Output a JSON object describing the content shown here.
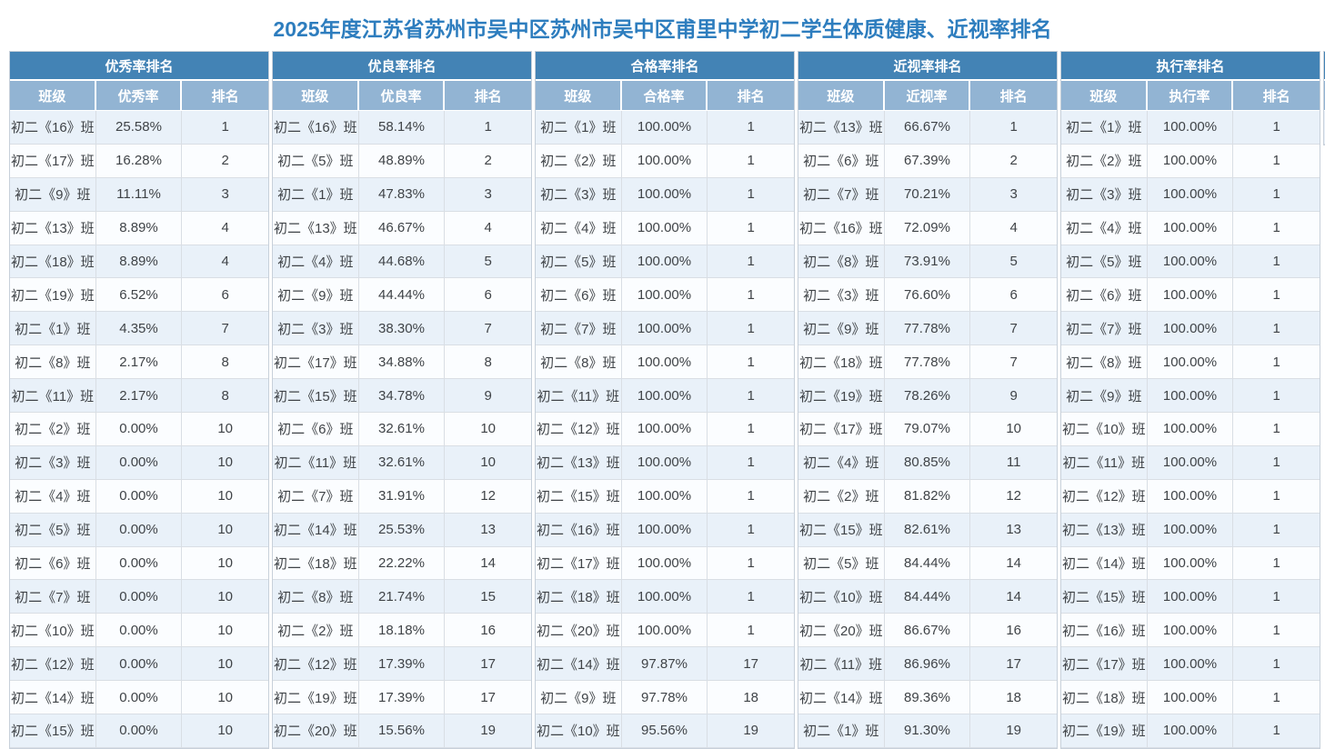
{
  "title": "2025年度江苏省苏州市吴中区苏州市吴中区甫里中学初二学生体质健康、近视率排名",
  "colors": {
    "title_blue": "#2d7dbe",
    "header_band_blue": "#4383b5",
    "subheader_blue": "#92b4d3",
    "row_odd": "#e9f1f9",
    "row_even": "#fbfdff",
    "cell_border": "#d9dee4",
    "cell_text": "#3f4347"
  },
  "tables": [
    {
      "title": "优秀率排名",
      "columns": [
        "班级",
        "优秀率",
        "排名"
      ],
      "rows": [
        [
          "初二《16》班",
          "25.58%",
          "1"
        ],
        [
          "初二《17》班",
          "16.28%",
          "2"
        ],
        [
          "初二《9》班",
          "11.11%",
          "3"
        ],
        [
          "初二《13》班",
          "8.89%",
          "4"
        ],
        [
          "初二《18》班",
          "8.89%",
          "4"
        ],
        [
          "初二《19》班",
          "6.52%",
          "6"
        ],
        [
          "初二《1》班",
          "4.35%",
          "7"
        ],
        [
          "初二《8》班",
          "2.17%",
          "8"
        ],
        [
          "初二《11》班",
          "2.17%",
          "8"
        ],
        [
          "初二《2》班",
          "0.00%",
          "10"
        ],
        [
          "初二《3》班",
          "0.00%",
          "10"
        ],
        [
          "初二《4》班",
          "0.00%",
          "10"
        ],
        [
          "初二《5》班",
          "0.00%",
          "10"
        ],
        [
          "初二《6》班",
          "0.00%",
          "10"
        ],
        [
          "初二《7》班",
          "0.00%",
          "10"
        ],
        [
          "初二《10》班",
          "0.00%",
          "10"
        ],
        [
          "初二《12》班",
          "0.00%",
          "10"
        ],
        [
          "初二《14》班",
          "0.00%",
          "10"
        ],
        [
          "初二《15》班",
          "0.00%",
          "10"
        ]
      ]
    },
    {
      "title": "优良率排名",
      "columns": [
        "班级",
        "优良率",
        "排名"
      ],
      "rows": [
        [
          "初二《16》班",
          "58.14%",
          "1"
        ],
        [
          "初二《5》班",
          "48.89%",
          "2"
        ],
        [
          "初二《1》班",
          "47.83%",
          "3"
        ],
        [
          "初二《13》班",
          "46.67%",
          "4"
        ],
        [
          "初二《4》班",
          "44.68%",
          "5"
        ],
        [
          "初二《9》班",
          "44.44%",
          "6"
        ],
        [
          "初二《3》班",
          "38.30%",
          "7"
        ],
        [
          "初二《17》班",
          "34.88%",
          "8"
        ],
        [
          "初二《15》班",
          "34.78%",
          "9"
        ],
        [
          "初二《6》班",
          "32.61%",
          "10"
        ],
        [
          "初二《11》班",
          "32.61%",
          "10"
        ],
        [
          "初二《7》班",
          "31.91%",
          "12"
        ],
        [
          "初二《14》班",
          "25.53%",
          "13"
        ],
        [
          "初二《18》班",
          "22.22%",
          "14"
        ],
        [
          "初二《8》班",
          "21.74%",
          "15"
        ],
        [
          "初二《2》班",
          "18.18%",
          "16"
        ],
        [
          "初二《12》班",
          "17.39%",
          "17"
        ],
        [
          "初二《19》班",
          "17.39%",
          "17"
        ],
        [
          "初二《20》班",
          "15.56%",
          "19"
        ]
      ]
    },
    {
      "title": "合格率排名",
      "columns": [
        "班级",
        "合格率",
        "排名"
      ],
      "rows": [
        [
          "初二《1》班",
          "100.00%",
          "1"
        ],
        [
          "初二《2》班",
          "100.00%",
          "1"
        ],
        [
          "初二《3》班",
          "100.00%",
          "1"
        ],
        [
          "初二《4》班",
          "100.00%",
          "1"
        ],
        [
          "初二《5》班",
          "100.00%",
          "1"
        ],
        [
          "初二《6》班",
          "100.00%",
          "1"
        ],
        [
          "初二《7》班",
          "100.00%",
          "1"
        ],
        [
          "初二《8》班",
          "100.00%",
          "1"
        ],
        [
          "初二《11》班",
          "100.00%",
          "1"
        ],
        [
          "初二《12》班",
          "100.00%",
          "1"
        ],
        [
          "初二《13》班",
          "100.00%",
          "1"
        ],
        [
          "初二《15》班",
          "100.00%",
          "1"
        ],
        [
          "初二《16》班",
          "100.00%",
          "1"
        ],
        [
          "初二《17》班",
          "100.00%",
          "1"
        ],
        [
          "初二《18》班",
          "100.00%",
          "1"
        ],
        [
          "初二《20》班",
          "100.00%",
          "1"
        ],
        [
          "初二《14》班",
          "97.87%",
          "17"
        ],
        [
          "初二《9》班",
          "97.78%",
          "18"
        ],
        [
          "初二《10》班",
          "95.56%",
          "19"
        ]
      ]
    },
    {
      "title": "近视率排名",
      "columns": [
        "班级",
        "近视率",
        "排名"
      ],
      "rows": [
        [
          "初二《13》班",
          "66.67%",
          "1"
        ],
        [
          "初二《6》班",
          "67.39%",
          "2"
        ],
        [
          "初二《7》班",
          "70.21%",
          "3"
        ],
        [
          "初二《16》班",
          "72.09%",
          "4"
        ],
        [
          "初二《8》班",
          "73.91%",
          "5"
        ],
        [
          "初二《3》班",
          "76.60%",
          "6"
        ],
        [
          "初二《9》班",
          "77.78%",
          "7"
        ],
        [
          "初二《18》班",
          "77.78%",
          "7"
        ],
        [
          "初二《19》班",
          "78.26%",
          "9"
        ],
        [
          "初二《17》班",
          "79.07%",
          "10"
        ],
        [
          "初二《4》班",
          "80.85%",
          "11"
        ],
        [
          "初二《2》班",
          "81.82%",
          "12"
        ],
        [
          "初二《15》班",
          "82.61%",
          "13"
        ],
        [
          "初二《5》班",
          "84.44%",
          "14"
        ],
        [
          "初二《10》班",
          "84.44%",
          "14"
        ],
        [
          "初二《20》班",
          "86.67%",
          "16"
        ],
        [
          "初二《11》班",
          "86.96%",
          "17"
        ],
        [
          "初二《14》班",
          "89.36%",
          "18"
        ],
        [
          "初二《1》班",
          "91.30%",
          "19"
        ]
      ]
    },
    {
      "title": "执行率排名",
      "columns": [
        "班级",
        "执行率",
        "排名"
      ],
      "rows": [
        [
          "初二《1》班",
          "100.00%",
          "1"
        ],
        [
          "初二《2》班",
          "100.00%",
          "1"
        ],
        [
          "初二《3》班",
          "100.00%",
          "1"
        ],
        [
          "初二《4》班",
          "100.00%",
          "1"
        ],
        [
          "初二《5》班",
          "100.00%",
          "1"
        ],
        [
          "初二《6》班",
          "100.00%",
          "1"
        ],
        [
          "初二《7》班",
          "100.00%",
          "1"
        ],
        [
          "初二《8》班",
          "100.00%",
          "1"
        ],
        [
          "初二《9》班",
          "100.00%",
          "1"
        ],
        [
          "初二《10》班",
          "100.00%",
          "1"
        ],
        [
          "初二《11》班",
          "100.00%",
          "1"
        ],
        [
          "初二《12》班",
          "100.00%",
          "1"
        ],
        [
          "初二《13》班",
          "100.00%",
          "1"
        ],
        [
          "初二《14》班",
          "100.00%",
          "1"
        ],
        [
          "初二《15》班",
          "100.00%",
          "1"
        ],
        [
          "初二《16》班",
          "100.00%",
          "1"
        ],
        [
          "初二《17》班",
          "100.00%",
          "1"
        ],
        [
          "初二《18》班",
          "100.00%",
          "1"
        ],
        [
          "初二《19》班",
          "100.00%",
          "1"
        ]
      ]
    },
    {
      "title": "",
      "columns": [
        "",
        "",
        ""
      ],
      "rows": [
        [
          "",
          "",
          ""
        ]
      ],
      "clipped": true
    }
  ]
}
